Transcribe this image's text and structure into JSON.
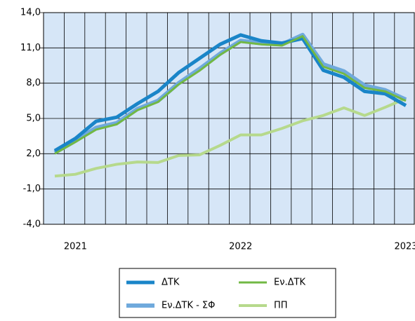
{
  "chart_data": {
    "type": "line",
    "categories": [
      null,
      "2021",
      null,
      null,
      null,
      null,
      null,
      null,
      null,
      "2022",
      null,
      null,
      null,
      null,
      null,
      null,
      null,
      "2023"
    ],
    "series": [
      {
        "name": "ΔΤΚ",
        "color": "#1a85c8",
        "values": [
          2.26,
          3.3,
          4.76,
          5.1,
          6.25,
          7.3,
          8.9,
          10.1,
          11.3,
          12.1,
          11.6,
          11.4,
          11.8,
          9.1,
          8.5,
          7.3,
          7.1,
          6.1
        ]
      },
      {
        "name": "Εν.ΔΤΚ",
        "color": "#72b844",
        "values": [
          2.0,
          3.0,
          4.05,
          4.5,
          5.7,
          6.4,
          7.9,
          9.05,
          10.4,
          11.5,
          11.3,
          11.2,
          12.0,
          9.4,
          8.8,
          7.6,
          7.3,
          6.5
        ]
      },
      {
        "name": "Εν.ΔΤΚ - ΣΦ",
        "color": "#6fa9dc",
        "values": [
          2.1,
          3.1,
          4.2,
          4.6,
          5.8,
          6.5,
          8.0,
          9.2,
          10.5,
          11.6,
          11.4,
          11.3,
          12.1,
          9.6,
          9.0,
          7.8,
          7.4,
          6.6
        ]
      },
      {
        "name": "ΠΠ",
        "color": "#b6d98c",
        "values": [
          0.1,
          0.25,
          0.75,
          1.1,
          1.3,
          1.25,
          1.85,
          1.9,
          2.7,
          3.6,
          3.6,
          4.15,
          4.8,
          5.25,
          5.9,
          5.25,
          5.95,
          6.7
        ]
      }
    ],
    "ylim": [
      -4,
      14
    ],
    "yticks": [
      {
        "value": -4,
        "label": "-4,0"
      },
      {
        "value": -1,
        "label": "-1,0"
      },
      {
        "value": 2,
        "label": "2,0"
      },
      {
        "value": 5,
        "label": "5,0"
      },
      {
        "value": 8,
        "label": "8,0"
      },
      {
        "value": 11,
        "label": "11,0"
      },
      {
        "value": 14,
        "label": "14,0"
      }
    ],
    "grid": true
  }
}
